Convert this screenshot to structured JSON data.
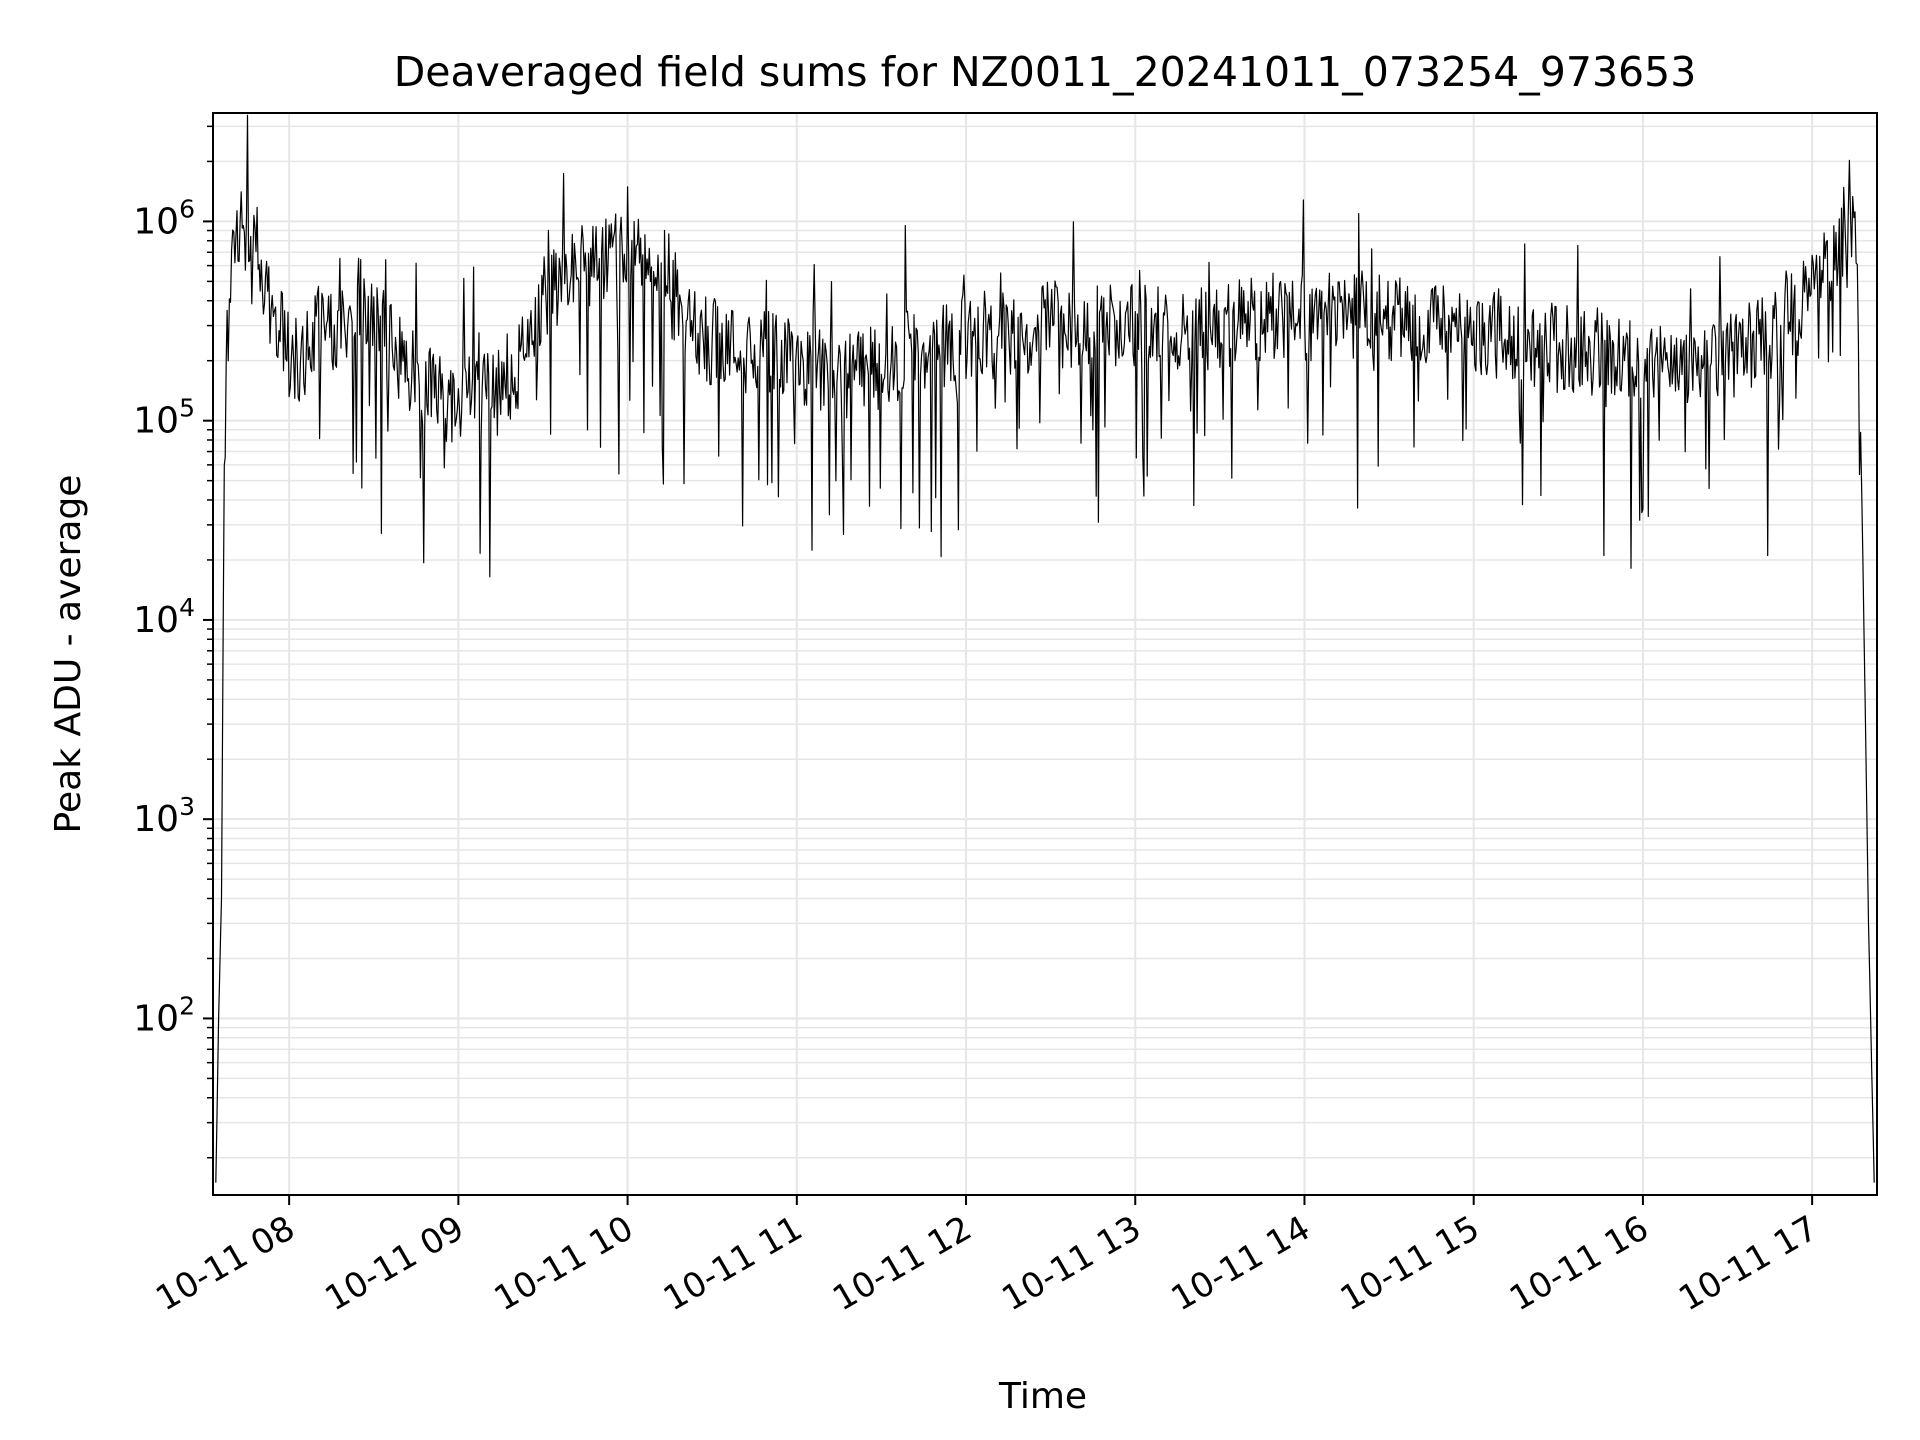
{
  "chart_data": {
    "type": "line",
    "title": "Deaveraged field sums for NZ0011_20241011_073254_973653",
    "xlabel": "Time",
    "ylabel": "Peak ADU - average",
    "y_scale": "log",
    "grid": true,
    "legend": "none",
    "line_color": "#000000",
    "grid_color": "#e6e6e6",
    "xlim": [
      "10-11 07:33",
      "10-11 17:23"
    ],
    "ylim": [
      13,
      3500000
    ],
    "x_ticks": [
      "10-11 08",
      "10-11 09",
      "10-11 10",
      "10-11 11",
      "10-11 12",
      "10-11 13",
      "10-11 14",
      "10-11 15",
      "10-11 16",
      "10-11 17"
    ],
    "y_ticks": [
      {
        "base": "10",
        "exp": "2",
        "value": 100
      },
      {
        "base": "10",
        "exp": "3",
        "value": 1000
      },
      {
        "base": "10",
        "exp": "4",
        "value": 10000
      },
      {
        "base": "10",
        "exp": "5",
        "value": 100000
      },
      {
        "base": "10",
        "exp": "6",
        "value": 1000000
      }
    ],
    "series": [
      {
        "x": [
          "07:34",
          "07:35",
          "07:36",
          "07:37",
          "07:38",
          "07:40",
          "07:43",
          "07:46",
          "07:49",
          "07:52",
          "07:56",
          "08:00",
          "08:04",
          "08:08",
          "08:12",
          "08:16",
          "08:20",
          "08:25",
          "08:30",
          "08:35",
          "08:40",
          "08:45",
          "08:50",
          "08:55",
          "09:00",
          "09:05",
          "09:10",
          "09:15",
          "09:20",
          "09:25",
          "09:30",
          "09:35",
          "09:40",
          "09:45",
          "09:50",
          "09:55",
          "10:00",
          "10:05",
          "10:10",
          "10:15",
          "10:20",
          "10:30",
          "10:40",
          "10:50",
          "11:00",
          "11:10",
          "11:20",
          "11:30",
          "11:40",
          "11:50",
          "12:00",
          "12:15",
          "12:30",
          "12:45",
          "13:00",
          "13:15",
          "13:30",
          "13:45",
          "14:00",
          "14:15",
          "14:30",
          "14:45",
          "15:00",
          "15:15",
          "15:30",
          "15:45",
          "16:00",
          "16:15",
          "16:30",
          "16:45",
          "16:55",
          "17:00",
          "17:05",
          "17:10",
          "17:12",
          "17:14",
          "17:16",
          "17:18",
          "17:20",
          "17:22"
        ],
        "y": [
          15,
          100,
          400,
          60000,
          300000,
          700000,
          900000,
          850000,
          700000,
          450000,
          300000,
          220000,
          200000,
          260000,
          300000,
          280000,
          300000,
          400000,
          350000,
          250000,
          200000,
          160000,
          140000,
          130000,
          110000,
          120000,
          130000,
          140000,
          160000,
          260000,
          400000,
          500000,
          600000,
          550000,
          650000,
          700000,
          600000,
          650000,
          550000,
          450000,
          320000,
          250000,
          220000,
          230000,
          200000,
          180000,
          170000,
          180000,
          220000,
          240000,
          260000,
          280000,
          300000,
          310000,
          300000,
          280000,
          300000,
          320000,
          330000,
          340000,
          330000,
          310000,
          280000,
          250000,
          230000,
          220000,
          200000,
          190000,
          210000,
          260000,
          350000,
          450000,
          600000,
          800000,
          1000000,
          1100000,
          800000,
          20000,
          300,
          15
        ]
      }
    ]
  }
}
